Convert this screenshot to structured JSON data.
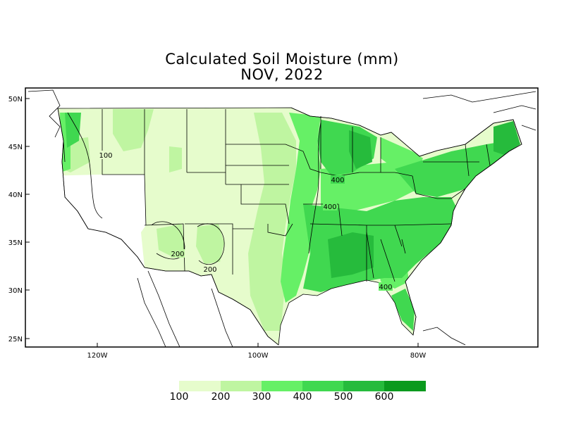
{
  "title": "Calculated Soil Moisture (mm)",
  "subtitle": "NOV, 2022",
  "lat_labels": [
    "50N",
    "45N",
    "40N",
    "35N",
    "30N",
    "25N"
  ],
  "lon_labels": [
    "120W",
    "100W",
    "80W"
  ],
  "contour_labels": [
    "100",
    "200",
    "200",
    "400",
    "400",
    "400"
  ],
  "legend": {
    "values": [
      "100",
      "200",
      "300",
      "400",
      "500",
      "600"
    ],
    "colors": [
      "#e6fccc",
      "#bff5a1",
      "#66f066",
      "#40d850",
      "#26bb3c",
      "#0a9a1e"
    ]
  },
  "colors": {
    "c0": "#ffffff",
    "c1": "#e6fccc",
    "c2": "#bff5a1",
    "c3": "#66f066",
    "c4": "#40d850",
    "c5": "#26bb3c",
    "c6": "#0a9a1e"
  }
}
